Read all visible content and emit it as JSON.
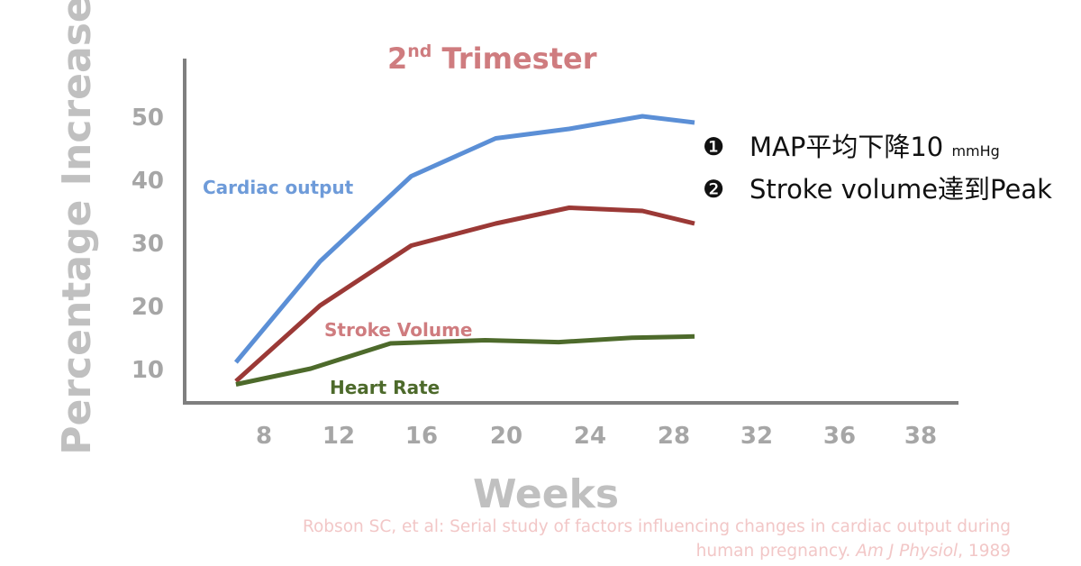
{
  "chart_data": {
    "type": "line",
    "title_main": "2",
    "title_sup": "nd",
    "title_rest": " Trimester",
    "xlabel": "Weeks",
    "ylabel": "Percentage Increase",
    "x_ticks": [
      8,
      12,
      16,
      20,
      24,
      28,
      32,
      36,
      38
    ],
    "y_ticks": [
      10,
      20,
      30,
      40,
      50
    ],
    "series": [
      {
        "name": "Cardiac output",
        "color": "#5b8fd6",
        "x": [
          6.5,
          11,
          15.5,
          19.5,
          23,
          26.5,
          29
        ],
        "y": [
          11,
          27,
          40.5,
          46.5,
          48,
          50,
          49
        ]
      },
      {
        "name": "Stroke Volume",
        "color": "#9b3936",
        "x": [
          6.5,
          11,
          15.5,
          19.5,
          23,
          26.5,
          29
        ],
        "y": [
          8,
          20,
          29.5,
          33,
          35.5,
          35,
          33
        ]
      },
      {
        "name": "Heart Rate",
        "color": "#4d6a2b",
        "x": [
          6.5,
          10.5,
          14.5,
          19,
          22.5,
          26,
          29
        ],
        "y": [
          7.5,
          10,
          14,
          14.5,
          14.2,
          14.9,
          15.1
        ]
      }
    ],
    "label_colors": {
      "Cardiac output": "#6e9bd9",
      "Stroke Volume": "#cf7c7f",
      "Heart Rate": "#4d6a2b"
    },
    "grid": false
  },
  "notes": [
    {
      "marker": "❶",
      "text": "MAP平均下降10 ",
      "small": "mmHg"
    },
    {
      "marker": "❷",
      "text": "Stroke volume達到Peak",
      "small": ""
    }
  ],
  "citation": {
    "line1": "Robson SC, et al: Serial study of factors influencing changes in cardiac output during",
    "line2_prefix": "human pregnancy. ",
    "line2_italic": "Am J Physiol",
    "line2_suffix": ", 1989"
  }
}
